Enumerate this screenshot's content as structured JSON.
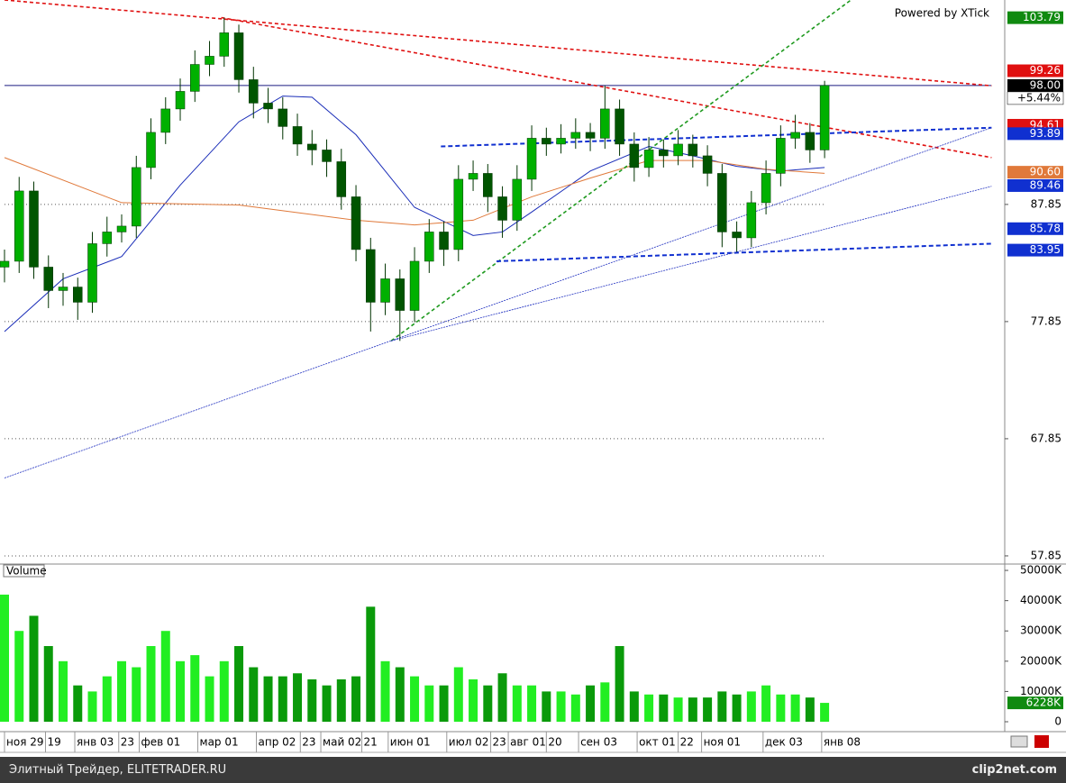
{
  "chart_data": [
    {
      "type": "candlestick",
      "watermark": "Powered by XTick",
      "x": [
        0,
        5,
        10,
        15,
        20,
        25,
        30,
        35,
        40,
        45,
        50,
        55,
        60,
        65,
        70,
        75,
        80,
        85,
        90,
        95,
        100,
        105,
        110,
        115,
        120,
        125,
        130,
        135,
        140,
        145,
        150,
        155,
        160,
        165,
        170,
        175,
        180,
        185,
        190,
        195,
        200,
        205,
        210,
        215,
        220,
        225,
        230,
        235,
        240,
        245,
        250,
        255,
        260,
        265,
        270,
        275,
        280
      ],
      "open": [
        82.5,
        83,
        89,
        82.5,
        80.5,
        80.8,
        79.5,
        84.5,
        85.5,
        86,
        91,
        94,
        96,
        97.5,
        99.8,
        100.5,
        102.5,
        98.5,
        96.5,
        96,
        94.5,
        93,
        92.5,
        91.5,
        88.5,
        84,
        79.5,
        81.5,
        78.8,
        83,
        85.5,
        84,
        90,
        90.5,
        88.5,
        86.5,
        90,
        93.5,
        93,
        93.5,
        94,
        93.5,
        96,
        93,
        91,
        92.5,
        92,
        93,
        92,
        90.5,
        85.5,
        85,
        88,
        90.5,
        93.5,
        94,
        92.5
      ],
      "high": [
        84,
        90.2,
        89.8,
        83.5,
        82,
        81.6,
        85.5,
        86.8,
        87,
        92,
        95.2,
        97,
        98.6,
        101,
        101.8,
        103.8,
        103.2,
        99.6,
        97.8,
        97,
        95.6,
        94.2,
        93.4,
        92.6,
        89.5,
        85,
        82.8,
        82.3,
        84.2,
        86.6,
        86.4,
        91.2,
        91.6,
        91.3,
        89.4,
        91.2,
        94.6,
        94.4,
        94.7,
        95.2,
        94.8,
        98,
        96.8,
        94,
        93.6,
        93.4,
        94.2,
        93.8,
        92.9,
        91.3,
        86.4,
        89,
        91.6,
        94.6,
        95.5,
        94.8,
        98.4
      ],
      "low": [
        81.2,
        82,
        81.5,
        79,
        79.2,
        78,
        78.6,
        83.4,
        84.6,
        85,
        90,
        93,
        95,
        96.6,
        98.8,
        99.6,
        97.4,
        95.2,
        94.8,
        93.4,
        92,
        91.2,
        90.2,
        87.4,
        83,
        77,
        78.4,
        76.2,
        77.8,
        82,
        82.6,
        83,
        89,
        87.2,
        85,
        85.6,
        89,
        92,
        92.2,
        92.6,
        92.4,
        92.6,
        92,
        89.8,
        90.2,
        91,
        91.2,
        91,
        89.4,
        84.2,
        83.8,
        84.2,
        87,
        89.4,
        92.6,
        91.4,
        91.8
      ],
      "close": [
        83,
        89,
        82.5,
        80.5,
        80.8,
        79.5,
        84.5,
        85.5,
        86,
        91,
        94,
        96,
        97.5,
        99.8,
        100.5,
        102.5,
        98.5,
        96.5,
        96,
        94.5,
        93,
        92.5,
        91.5,
        88.5,
        84,
        79.5,
        81.5,
        78.8,
        83,
        85.5,
        84,
        90,
        90.5,
        88.5,
        86.5,
        90,
        93.5,
        93,
        93.5,
        94,
        93.5,
        96,
        93,
        91,
        92.5,
        92,
        93,
        92,
        90.5,
        85.5,
        85,
        88,
        90.5,
        93.5,
        94,
        92.5,
        98
      ],
      "up_color": "#00b000",
      "down_color": "#005500",
      "xlim": [
        0,
        341.5
      ],
      "ylim": [
        57.23,
        105.3
      ],
      "yticks": [
        57.85,
        67.85,
        77.85,
        87.85
      ],
      "grid": true,
      "lines": [
        {
          "color": "#1a2db8",
          "x": [
            0,
            20,
            40,
            60,
            80,
            95,
            105,
            120,
            140,
            160,
            170,
            180,
            200,
            220,
            235,
            250,
            265,
            280
          ],
          "values": [
            77.0,
            81.5,
            83.4,
            89.5,
            94.9,
            97.1,
            97.0,
            93.8,
            87.6,
            85.2,
            85.5,
            87.2,
            90.7,
            92.8,
            92.0,
            91.1,
            90.7,
            91.0
          ]
        },
        {
          "color": "#e0793a",
          "x": [
            0,
            40,
            80,
            120,
            140,
            160,
            180,
            200,
            220,
            240,
            260,
            280
          ],
          "values": [
            91.85,
            88.0,
            87.8,
            86.5,
            86.1,
            86.5,
            88.5,
            90.1,
            91.6,
            91.6,
            90.85,
            90.5
          ]
        }
      ],
      "trendlines": [
        {
          "color": "#e01010",
          "dash": "4,3",
          "width": 1.6,
          "x": [
            0,
            337
          ],
          "values": [
            105.3,
            97.98
          ]
        },
        {
          "color": "#e01010",
          "dash": "4,3",
          "width": 1.6,
          "x": [
            74,
            337
          ],
          "values": [
            103.8,
            91.85
          ]
        },
        {
          "color": "#1f9a1f",
          "dash": "4,3",
          "width": 1.6,
          "x": [
            132,
            289
          ],
          "values": [
            76.2,
            105.3
          ]
        },
        {
          "color": "#1030d0",
          "dash": "5,3",
          "width": 2,
          "x": [
            149,
            337
          ],
          "values": [
            92.8,
            94.4
          ]
        },
        {
          "color": "#1030d0",
          "dash": "5,3",
          "width": 2,
          "x": [
            168,
            337
          ],
          "values": [
            83.0,
            84.5
          ]
        },
        {
          "color": "#2030c0",
          "dash": "2,1",
          "width": 0.8,
          "x": [
            0,
            337
          ],
          "values": [
            64.5,
            94.4
          ]
        },
        {
          "color": "#2030c0",
          "dash": "2,1",
          "width": 0.8,
          "x": [
            132,
            337
          ],
          "values": [
            76.2,
            89.4
          ]
        }
      ],
      "hline": {
        "value": 98,
        "color": "#1a1a80"
      },
      "price_labels": [
        {
          "value": 103.79,
          "color": "#108a10"
        },
        {
          "value": 99.26,
          "color": "#e01010"
        },
        {
          "value": 98,
          "label": "98.00",
          "color": "#000000"
        },
        {
          "value": 94.61,
          "color": "#e01010"
        },
        {
          "value": 93.89,
          "color": "#1030d0"
        },
        {
          "value": 90.6,
          "label": "90.60",
          "color": "#e0793a"
        },
        {
          "value": 89.46,
          "color": "#1030d0"
        },
        {
          "value": 85.78,
          "color": "#1030d0"
        },
        {
          "value": 83.95,
          "color": "#1030d0"
        }
      ],
      "change_label": "+5.44%"
    },
    {
      "type": "bar",
      "title": "Volume",
      "values": [
        42000,
        30000,
        35000,
        25000,
        20000,
        12000,
        10000,
        15000,
        20000,
        18000,
        25000,
        30000,
        20000,
        22000,
        15000,
        20000,
        25000,
        18000,
        15000,
        15000,
        16000,
        14000,
        12000,
        14000,
        15000,
        38000,
        20000,
        18000,
        15000,
        12000,
        12000,
        18000,
        14000,
        12000,
        16000,
        12000,
        12000,
        10000,
        10000,
        9000,
        12000,
        13000,
        25000,
        10000,
        9000,
        9000,
        8000,
        8000,
        8000,
        10000,
        9000,
        10000,
        12000,
        9000,
        9000,
        8000,
        6228
      ],
      "up_color": "#22ee22",
      "down_color": "#0a9a0a",
      "ylim": [
        0,
        51800
      ],
      "yticks": [
        0,
        {
          "value": 10000,
          "label": "10000K"
        },
        {
          "value": 20000,
          "label": "20000K"
        },
        {
          "value": 30000,
          "label": "30000K"
        },
        {
          "value": 40000,
          "label": "40000K"
        },
        {
          "value": 50000,
          "label": "50000K"
        }
      ],
      "last_label": {
        "value": 6228,
        "label": "6228K",
        "color": "#108a10"
      },
      "xticks": [
        {
          "value": 0,
          "label": "ноя 29"
        },
        {
          "value": 14,
          "label": "19"
        },
        {
          "value": 24,
          "label": "янв 03"
        },
        {
          "value": 39,
          "label": "23"
        },
        {
          "value": 46,
          "label": "фев 01"
        },
        {
          "value": 66,
          "label": "мар 01"
        },
        {
          "value": 86,
          "label": "апр 02"
        },
        {
          "value": 101,
          "label": "23"
        },
        {
          "value": 108,
          "label": "май 02"
        },
        {
          "value": 122,
          "label": "21"
        },
        {
          "value": 131,
          "label": "июн 01"
        },
        {
          "value": 151,
          "label": "июл 02"
        },
        {
          "value": 166,
          "label": "23"
        },
        {
          "value": 172,
          "label": "авг 01"
        },
        {
          "value": 185,
          "label": "20"
        },
        {
          "value": 196,
          "label": "сен 03"
        },
        {
          "value": 216,
          "label": "окт 01"
        },
        {
          "value": 230,
          "label": "22"
        },
        {
          "value": 238,
          "label": "ноя 01"
        },
        {
          "value": 259,
          "label": "дек 03"
        },
        {
          "value": 279,
          "label": "янв 08"
        }
      ]
    }
  ],
  "footer": {
    "left": "Элитный Трейдер, ELITETRADER.RU",
    "right": "clip2net.com"
  }
}
